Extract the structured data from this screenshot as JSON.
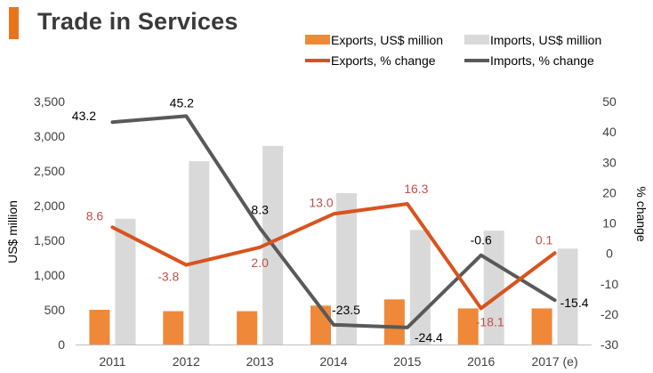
{
  "title": "Trade in Services",
  "colors": {
    "accent": "#E8731A",
    "exports_bar": "#F0883A",
    "imports_bar": "#D9D9D9",
    "exports_line": "#D9531E",
    "imports_line": "#595959",
    "exports_label": "#C0504D",
    "imports_label": "#000000",
    "axis_text": "#404040"
  },
  "chart_data": {
    "type": "bar",
    "title": "Trade in Services",
    "categories": [
      "2011",
      "2012",
      "2013",
      "2014",
      "2015",
      "2016",
      "2017 (e)"
    ],
    "series": [
      {
        "name": "Exports, US$ million",
        "kind": "bar",
        "axis": "left",
        "values": [
          500,
          480,
          480,
          560,
          650,
          520,
          520
        ]
      },
      {
        "name": "Imports, US$ million",
        "kind": "bar",
        "axis": "left",
        "values": [
          1810,
          2640,
          2860,
          2180,
          1650,
          1640,
          1380
        ]
      },
      {
        "name": "Exports, % change",
        "kind": "line",
        "axis": "right",
        "values": [
          8.6,
          -3.8,
          2.0,
          13.0,
          16.3,
          -18.1,
          0.1
        ],
        "labels": [
          "8.6",
          "-3.8",
          "2.0",
          "13.0",
          "16.3",
          "-18.1",
          "0.1"
        ]
      },
      {
        "name": "Imports, % change",
        "kind": "line",
        "axis": "right",
        "values": [
          43.2,
          45.2,
          8.3,
          -23.5,
          -24.4,
          -0.6,
          -15.4
        ],
        "labels": [
          "43.2",
          "45.2",
          "8.3",
          "-23.5",
          "-24.4",
          "-0.6",
          "-15.4"
        ]
      }
    ],
    "ylabel": "US$ million",
    "y2label": "% change",
    "ylim": [
      0,
      3500
    ],
    "y2lim": [
      -30,
      50
    ],
    "yticks": [
      0,
      500,
      1000,
      1500,
      2000,
      2500,
      3000,
      3500
    ],
    "yticklabels": [
      "0",
      "500",
      "1,000",
      "1,500",
      "2,000",
      "2,500",
      "3,000",
      "3,500"
    ],
    "y2ticks": [
      -30,
      -20,
      -10,
      0,
      10,
      20,
      30,
      40,
      50
    ],
    "y2ticklabels": [
      "-30",
      "-20",
      "-10",
      "0",
      "10",
      "20",
      "30",
      "40",
      "50"
    ],
    "legend": "top-right",
    "grid": false
  }
}
